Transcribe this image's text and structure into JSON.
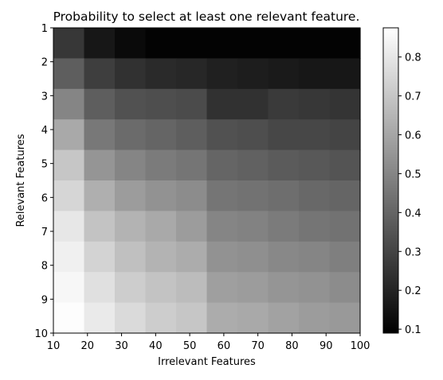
{
  "chart_data": {
    "type": "heatmap",
    "title": "Probability to select at least one relevant feature.",
    "xlabel": "Irrelevant Features",
    "ylabel": "Relevant Features",
    "x": [
      10,
      20,
      30,
      40,
      50,
      60,
      70,
      80,
      90,
      100
    ],
    "y": [
      1,
      2,
      3,
      4,
      5,
      6,
      7,
      8,
      9,
      10
    ],
    "xlim": [
      10,
      100
    ],
    "ylim": [
      10,
      1
    ],
    "x_ticks": [
      "10",
      "20",
      "30",
      "40",
      "50",
      "60",
      "70",
      "80",
      "90",
      "100"
    ],
    "y_ticks": [
      "1",
      "2",
      "3",
      "4",
      "5",
      "6",
      "7",
      "8",
      "9",
      "10"
    ],
    "colormap": "gray",
    "colorbar": {
      "range": [
        0.09,
        0.875
      ],
      "ticks": [
        "0.1",
        "0.2",
        "0.3",
        "0.4",
        "0.5",
        "0.6",
        "0.7",
        "0.8"
      ],
      "tick_values": [
        0.1,
        0.2,
        0.3,
        0.4,
        0.5,
        0.6,
        0.7,
        0.8
      ]
    },
    "values": [
      [
        0.26,
        0.16,
        0.12,
        0.1,
        0.1,
        0.1,
        0.1,
        0.1,
        0.1,
        0.1
      ],
      [
        0.38,
        0.28,
        0.24,
        0.22,
        0.21,
        0.19,
        0.18,
        0.17,
        0.16,
        0.16
      ],
      [
        0.5,
        0.38,
        0.34,
        0.33,
        0.32,
        0.24,
        0.24,
        0.27,
        0.26,
        0.25
      ],
      [
        0.61,
        0.46,
        0.42,
        0.4,
        0.38,
        0.34,
        0.33,
        0.31,
        0.31,
        0.3
      ],
      [
        0.7,
        0.55,
        0.5,
        0.47,
        0.45,
        0.4,
        0.39,
        0.37,
        0.36,
        0.35
      ],
      [
        0.75,
        0.63,
        0.57,
        0.54,
        0.52,
        0.45,
        0.44,
        0.43,
        0.41,
        0.4
      ],
      [
        0.8,
        0.69,
        0.64,
        0.61,
        0.57,
        0.5,
        0.49,
        0.47,
        0.45,
        0.44
      ],
      [
        0.83,
        0.74,
        0.68,
        0.64,
        0.62,
        0.54,
        0.53,
        0.51,
        0.5,
        0.48
      ],
      [
        0.85,
        0.78,
        0.72,
        0.69,
        0.67,
        0.58,
        0.57,
        0.55,
        0.54,
        0.52
      ],
      [
        0.87,
        0.81,
        0.76,
        0.72,
        0.7,
        0.62,
        0.61,
        0.59,
        0.57,
        0.56
      ]
    ]
  }
}
